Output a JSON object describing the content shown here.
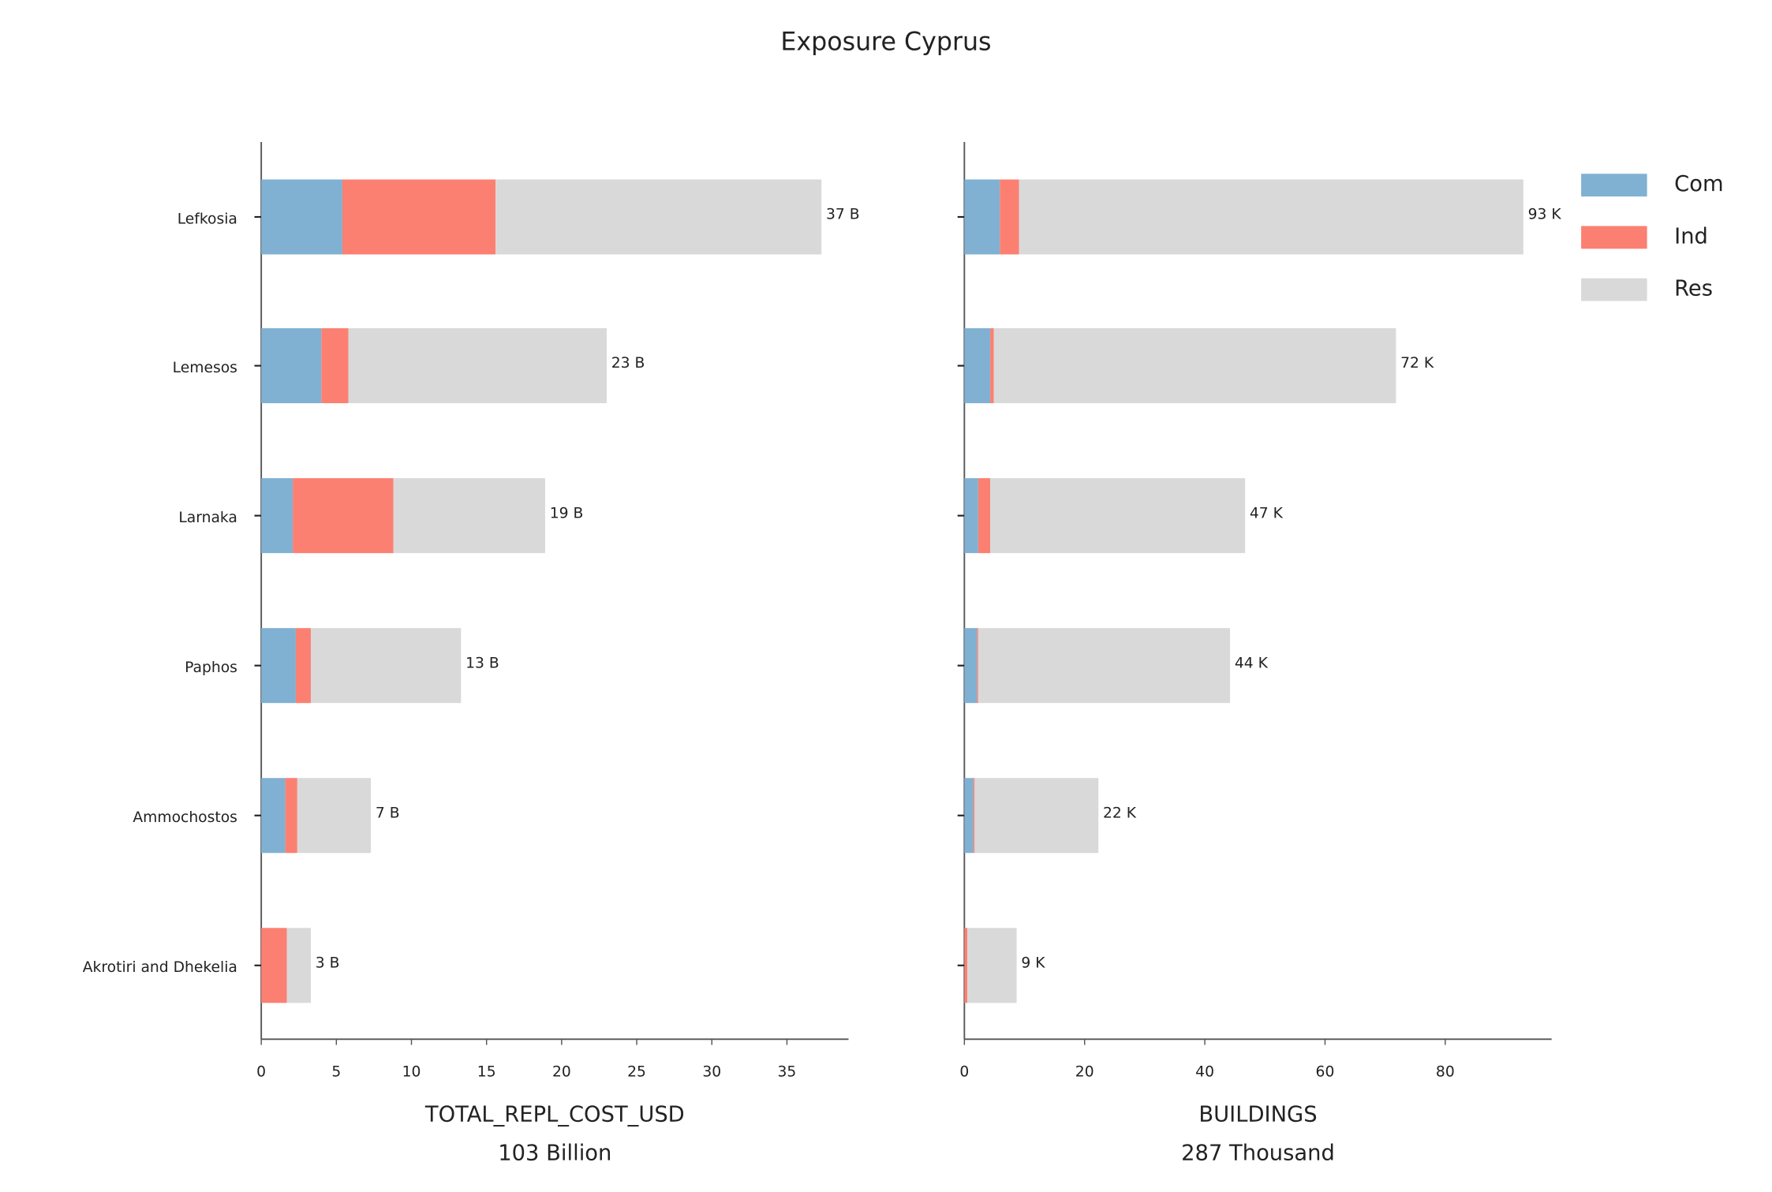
{
  "title": "Exposure Cyprus",
  "chart_data": [
    {
      "type": "barh",
      "categories": [
        "Lefkosia",
        "Lemesos",
        "Larnaka",
        "Paphos",
        "Ammochostos",
        "Akrotiri and Dhekelia"
      ],
      "series": [
        {
          "name": "Com",
          "color": "#80b1d3",
          "values": [
            5.4,
            4.0,
            2.1,
            2.3,
            1.6,
            0
          ]
        },
        {
          "name": "Ind",
          "color": "#fb8072",
          "values": [
            10.2,
            1.8,
            6.7,
            1.0,
            0.8,
            1.7
          ]
        },
        {
          "name": "Res",
          "color": "#d9d9d9",
          "values": [
            21.7,
            17.2,
            10.1,
            10.0,
            4.9,
            1.6
          ]
        }
      ],
      "total_labels": [
        "37 B",
        "23 B",
        "19 B",
        "13 B",
        "7 B",
        "3 B"
      ],
      "xlim": [
        0,
        39.1
      ],
      "xticks": [
        0,
        5,
        10,
        15,
        20,
        25,
        30,
        35
      ],
      "xlabel": [
        "TOTAL_REPL_COST_USD",
        "103 Billion"
      ]
    },
    {
      "type": "barh",
      "series": [
        {
          "name": "Com",
          "color": "#80b1d3",
          "values": [
            5.9,
            4.3,
            2.3,
            2.1,
            1.5,
            0
          ]
        },
        {
          "name": "Ind",
          "color": "#fb8072",
          "values": [
            3.2,
            0.6,
            2.0,
            0.2,
            0.2,
            0.5
          ]
        },
        {
          "name": "Res",
          "color": "#d9d9d9",
          "values": [
            83.9,
            66.9,
            42.4,
            41.9,
            20.6,
            8.2
          ]
        }
      ],
      "total_labels": [
        "93 K",
        "72 K",
        "47 K",
        "44 K",
        "22 K",
        "9 K"
      ],
      "xlim": [
        0,
        97.7
      ],
      "xticks": [
        0,
        20,
        40,
        60,
        80
      ],
      "xlabel": [
        "BUILDINGS",
        "287 Thousand"
      ],
      "legend": "outside right"
    }
  ]
}
